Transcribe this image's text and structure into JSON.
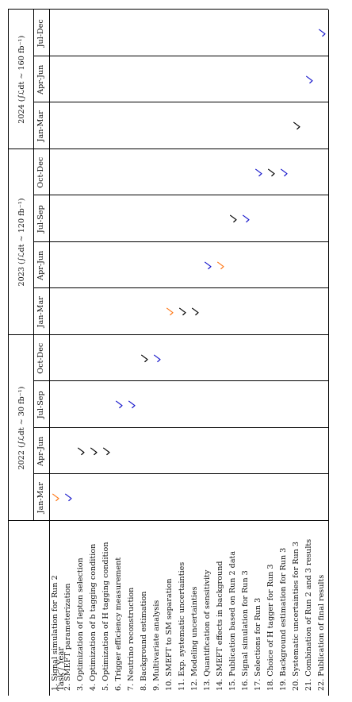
{
  "corner_label": "Task / Year",
  "years": [
    {
      "label": "2022 (∫ℒdt ∼ 30 fb⁻¹)"
    },
    {
      "label": "2023 (∫ℒdt ∼ 120 fb⁻¹)"
    },
    {
      "label": "2024 (∫ℒdt ∼ 160 fb⁻¹)"
    }
  ],
  "quarters": [
    "Jan-Mar",
    "Apr-Jun",
    "Jul-Sep",
    "Oct-Dec",
    "Jan-Mar",
    "Apr-Jun",
    "Jul-Sep",
    "Oct-Dec",
    "Jan-Mar",
    "Apr-Jun",
    "Jul-Dec"
  ],
  "tasks": [
    "1. Signal simulation for Run 2",
    "2. SMEFT parameterization",
    "3. Optimization of lepton selection",
    "4. Optimization of b tagging condition",
    "5. Optimization of H tagging condition",
    "6. Trigger efficiency measurement",
    "7. Neutrino reconstruction",
    "8. Background estimation",
    "9. Multivariate analysis",
    "10. SMEFT to SM separation",
    "11. Exp. systematic uncertainties",
    "12. Modeling uncertainties",
    "13. Quantification of sensitivity",
    "14. SMEFT effects in background",
    "15. Publication based on Run 2 data",
    "16. Signal simulation for Run 3",
    "17. Selections for Run 3",
    "18. Choice of H tagger for Run 3",
    "19. Background estimation for Run 3",
    "20. Systematic uncertainties for Run 3",
    "21. Combination of Run 2 and 3 results",
    "22. Publication of final results"
  ],
  "colors": {
    "black": "#000000",
    "blue": "#1a1acc",
    "orange": "#ff7a1a"
  },
  "marks": [
    {
      "task": 1,
      "quarter": 1,
      "color": "orange"
    },
    {
      "task": 2,
      "quarter": 1,
      "color": "blue"
    },
    {
      "task": 3,
      "quarter": 2,
      "color": "black"
    },
    {
      "task": 4,
      "quarter": 2,
      "color": "black"
    },
    {
      "task": 5,
      "quarter": 2,
      "color": "black"
    },
    {
      "task": 6,
      "quarter": 3,
      "color": "blue"
    },
    {
      "task": 7,
      "quarter": 3,
      "color": "blue"
    },
    {
      "task": 8,
      "quarter": 4,
      "color": "black"
    },
    {
      "task": 9,
      "quarter": 4,
      "color": "blue"
    },
    {
      "task": 10,
      "quarter": 5,
      "color": "orange"
    },
    {
      "task": 11,
      "quarter": 5,
      "color": "black"
    },
    {
      "task": 12,
      "quarter": 5,
      "color": "black"
    },
    {
      "task": 13,
      "quarter": 6,
      "color": "blue"
    },
    {
      "task": 14,
      "quarter": 6,
      "color": "orange"
    },
    {
      "task": 15,
      "quarter": 7,
      "color": "black"
    },
    {
      "task": 16,
      "quarter": 7,
      "color": "blue"
    },
    {
      "task": 17,
      "quarter": 8,
      "color": "blue"
    },
    {
      "task": 18,
      "quarter": 8,
      "color": "black"
    },
    {
      "task": 19,
      "quarter": 8,
      "color": "blue"
    },
    {
      "task": 20,
      "quarter": 9,
      "color": "black"
    },
    {
      "task": 21,
      "quarter": 10,
      "color": "blue"
    },
    {
      "task": 22,
      "quarter": 11,
      "color": "blue"
    }
  ]
}
